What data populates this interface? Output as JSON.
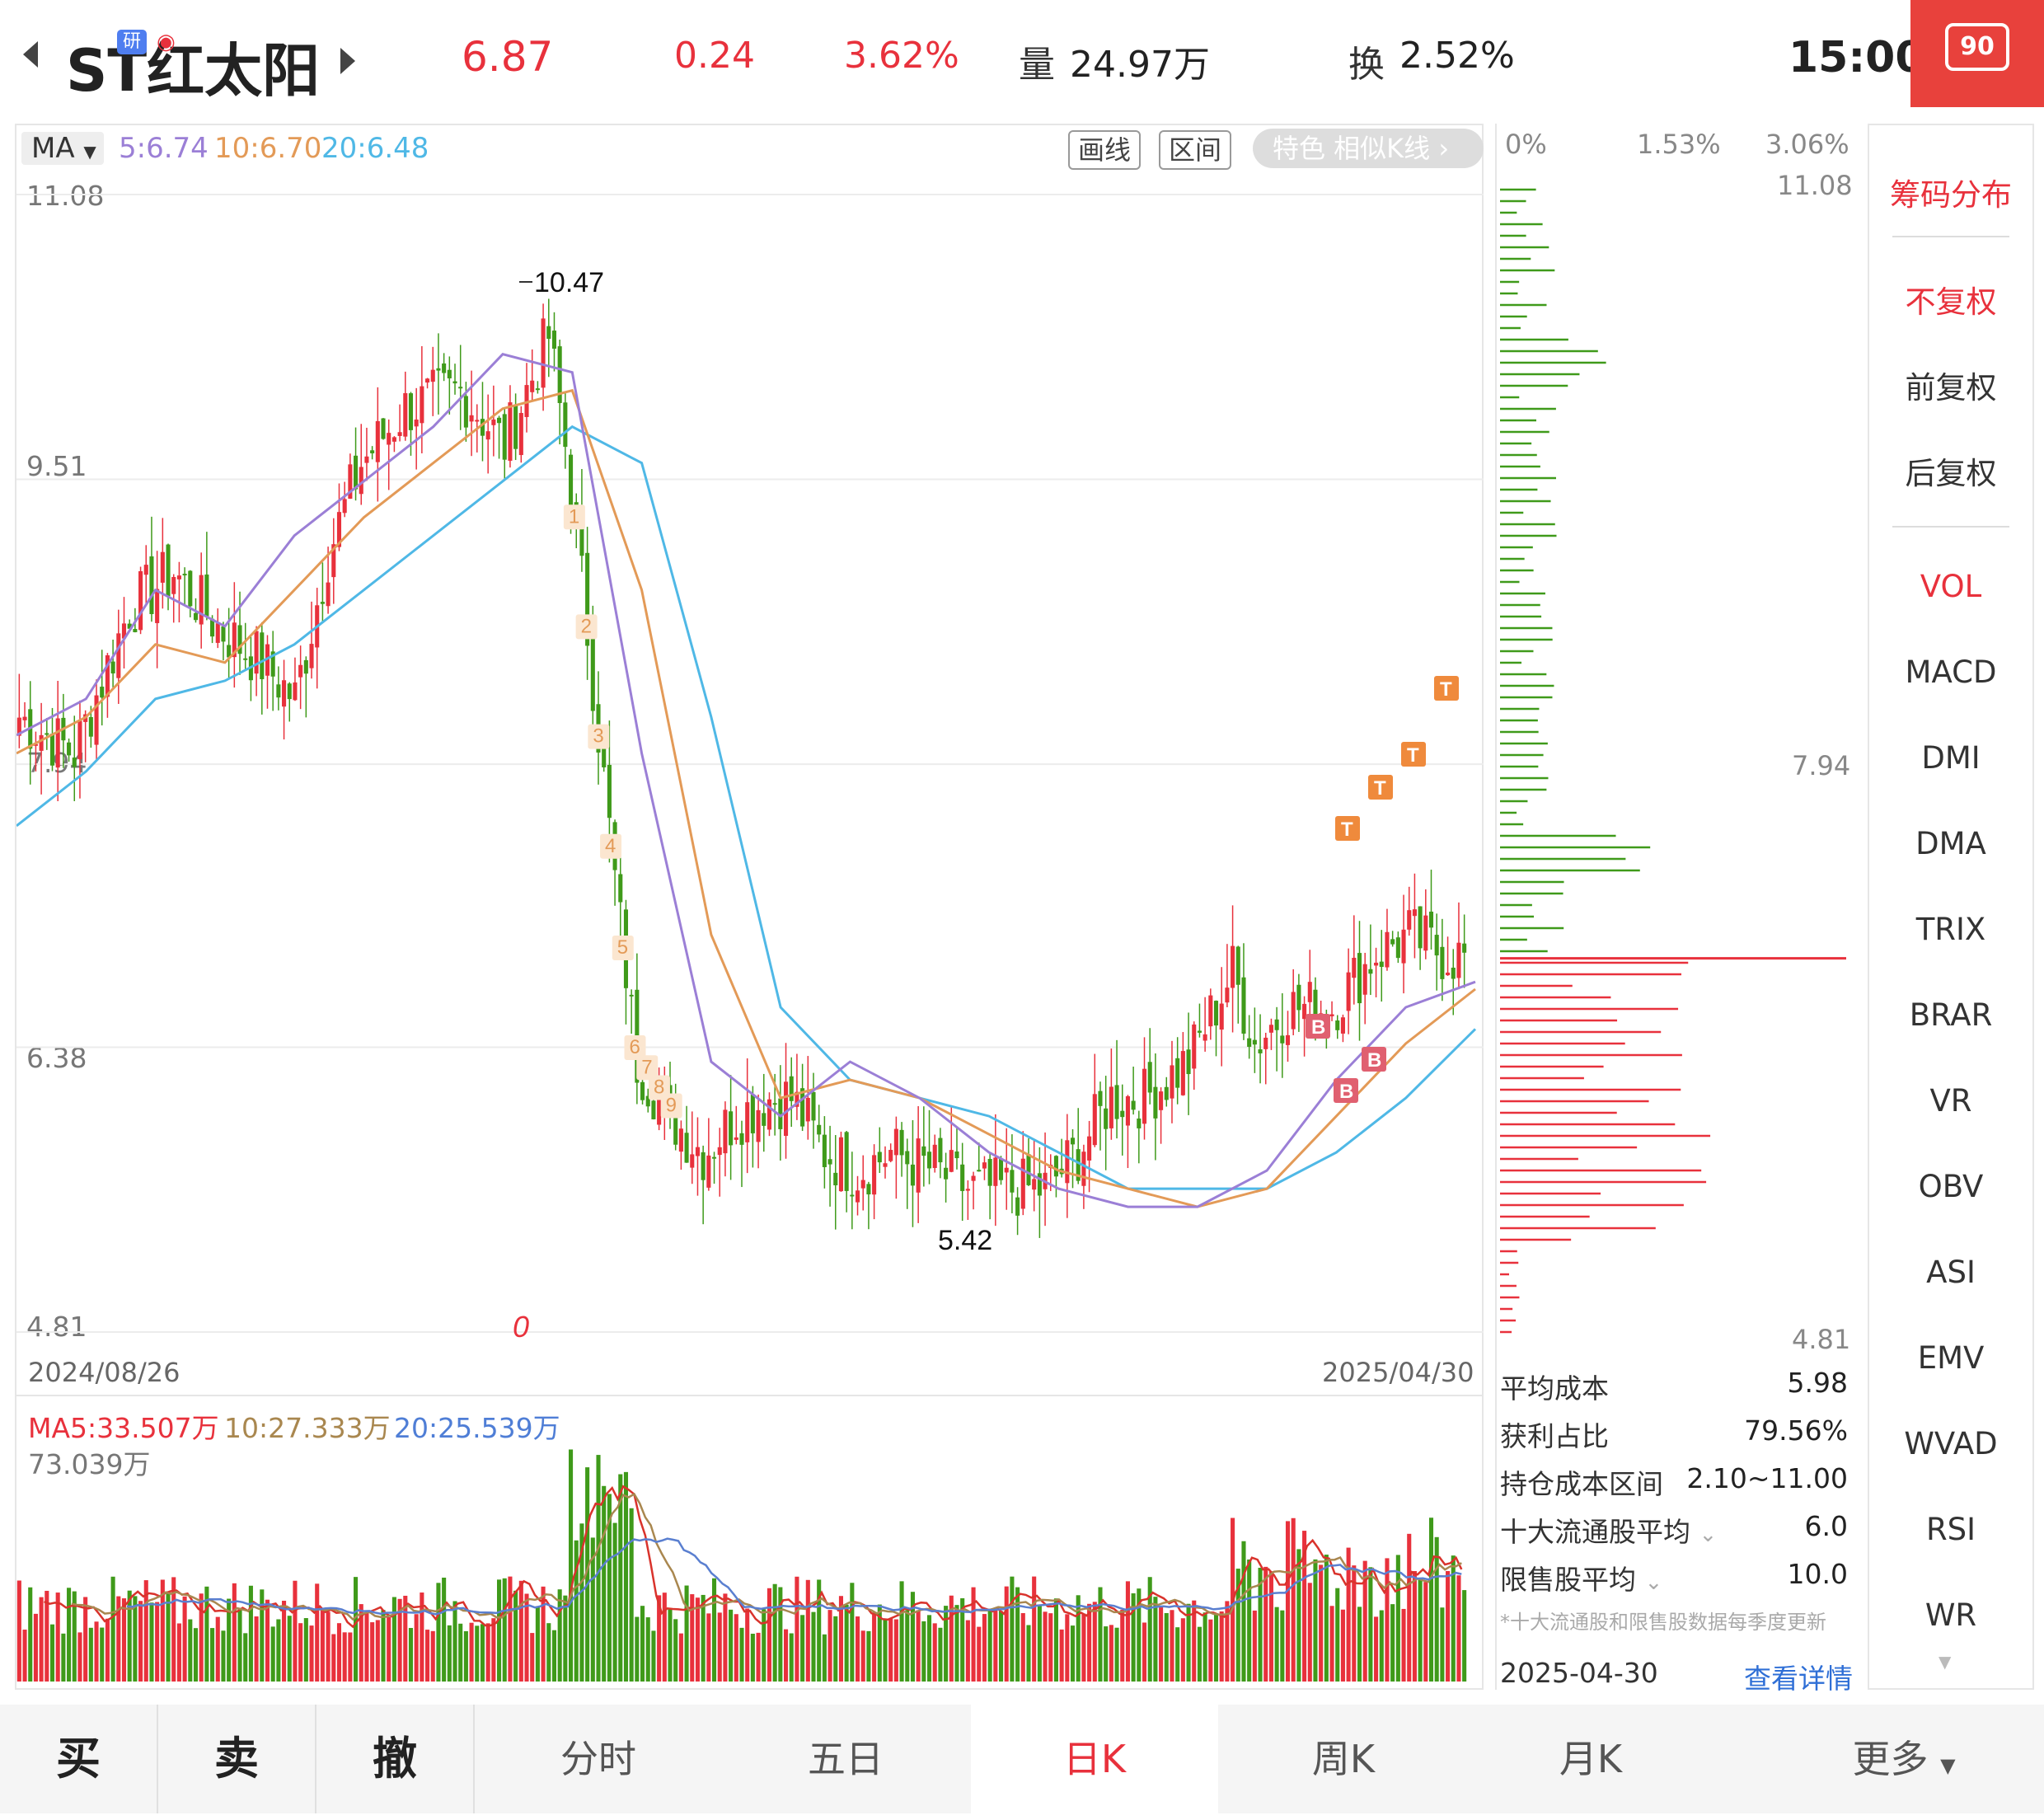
{
  "header": {
    "stock_name": "ST红太阳",
    "badge_research": "研",
    "price": "6.87",
    "change": "0.24",
    "change_pct": "3.62%",
    "volume_label": "量",
    "volume": "24.97万",
    "turnover_label": "换",
    "turnover": "2.52%",
    "time": "15:00",
    "corner_badge": "90"
  },
  "toolbar": {
    "ma_select": "MA",
    "ma5": "5:6.74",
    "ma10": "10:6.70",
    "ma20": "20:6.48",
    "draw_line": "画线",
    "interval": "区间",
    "feature": "特色  相似K线 ›"
  },
  "main_chart": {
    "y_ticks": [
      "11.08",
      "9.51",
      "7.94",
      "6.38",
      "4.81"
    ],
    "high_label": "10.47",
    "low_label": "5.42",
    "start_date": "2024/08/26",
    "end_date": "2025/04/30",
    "marker_zero": "0",
    "td_sequence_down": [
      "1",
      "2",
      "3",
      "4",
      "5",
      "6",
      "7",
      "8",
      "9"
    ]
  },
  "volume_chart": {
    "ma5": "MA5:33.507万",
    "ma10": "10:27.333万",
    "ma20": "20:25.539万",
    "max": "73.039万"
  },
  "chip": {
    "pct_ticks": [
      "0%",
      "1.53%",
      "3.06%"
    ],
    "price_ticks": [
      "11.08",
      "7.94",
      "4.81"
    ],
    "avg_cost_label": "平均成本",
    "avg_cost": "5.98",
    "profit_ratio_label": "获利占比",
    "profit_ratio": "79.56%",
    "cost_range_label": "持仓成本区间",
    "cost_range": "2.10~11.00",
    "top10_label": "十大流通股平均",
    "top10": "6.0",
    "restricted_label": "限售股平均",
    "restricted": "10.0",
    "note": "*十大流通股和限售股数据每季度更新",
    "date": "2025-04-30",
    "details": "查看详情"
  },
  "right_menu": {
    "title": "筹码分布",
    "adjust": [
      "不复权",
      "前复权",
      "后复权"
    ],
    "indicators": [
      "VOL",
      "MACD",
      "DMI",
      "DMA",
      "TRIX",
      "BRAR",
      "VR",
      "OBV",
      "ASI",
      "EMV",
      "WVAD",
      "RSI",
      "WR"
    ]
  },
  "bottom_nav": {
    "buy": "买",
    "sell": "卖",
    "cancel": "撤",
    "tabs": [
      "分时",
      "五日",
      "日K",
      "周K",
      "月K",
      "更多"
    ]
  },
  "colors": {
    "up": "#e8313c",
    "down": "#3f9a1a",
    "ma5": "#9b7fd6",
    "ma10": "#e39a57",
    "ma20": "#4fb8e6"
  },
  "chart_data": {
    "type": "candlestick",
    "x_range": [
      "2024/08/26",
      "2025/04/30"
    ],
    "ylim": [
      4.81,
      11.08
    ],
    "series": [
      {
        "name": "MA5",
        "values": [
          8.1,
          8.3,
          8.9,
          8.7,
          9.2,
          9.5,
          9.8,
          10.2,
          10.1,
          8.0,
          6.3,
          6.0,
          6.3,
          6.1,
          5.8,
          5.6,
          5.5,
          5.5,
          5.7,
          6.2,
          6.6,
          6.74
        ]
      },
      {
        "name": "MA10",
        "values": [
          8.0,
          8.2,
          8.6,
          8.5,
          8.9,
          9.3,
          9.6,
          9.9,
          10.0,
          8.9,
          7.0,
          6.1,
          6.2,
          6.1,
          5.9,
          5.7,
          5.6,
          5.5,
          5.6,
          6.0,
          6.4,
          6.7
        ]
      },
      {
        "name": "MA20",
        "values": [
          7.6,
          7.9,
          8.3,
          8.4,
          8.6,
          8.9,
          9.2,
          9.5,
          9.8,
          9.6,
          8.2,
          6.6,
          6.2,
          6.1,
          6.0,
          5.8,
          5.6,
          5.6,
          5.6,
          5.8,
          6.1,
          6.48
        ]
      }
    ]
  }
}
